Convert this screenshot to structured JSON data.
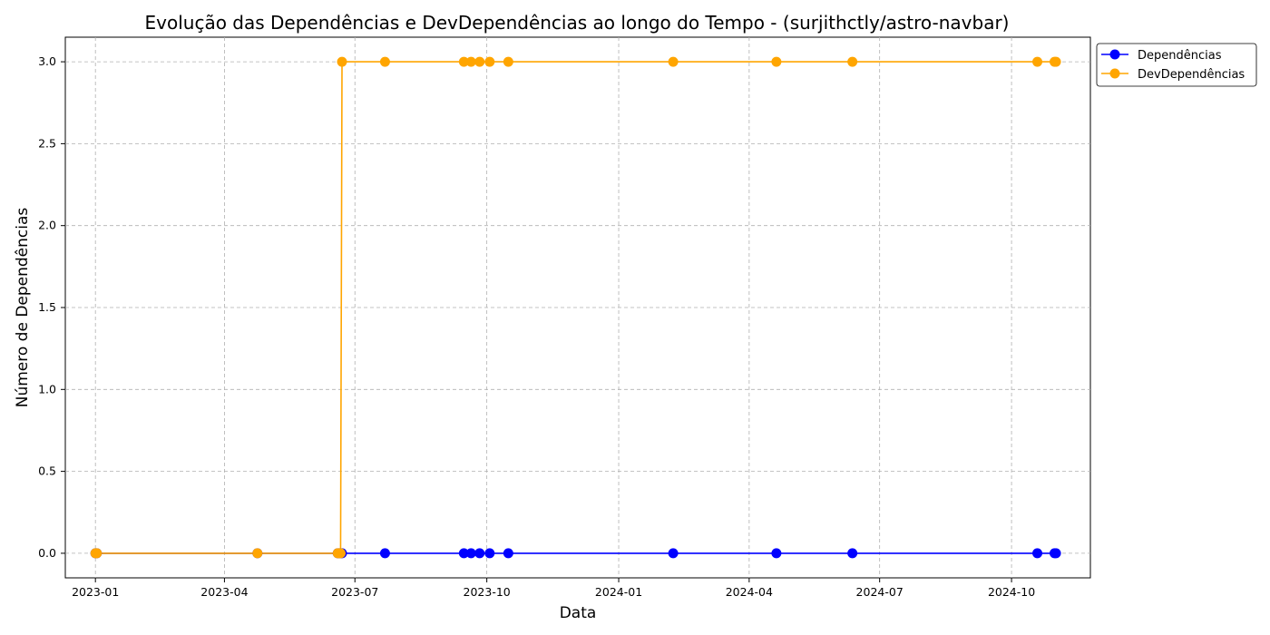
{
  "chart_data": {
    "type": "line",
    "title": "Evolução das Dependências e DevDependências ao longo do Tempo - (surjithctly/astro-navbar)",
    "xlabel": "Data",
    "ylabel": "Número de Dependências",
    "x_ticks": [
      "2023-01",
      "2023-04",
      "2023-07",
      "2023-10",
      "2024-01",
      "2024-04",
      "2024-07",
      "2024-10"
    ],
    "y_ticks": [
      "0.0",
      "0.5",
      "1.0",
      "1.5",
      "2.0",
      "2.5",
      "3.0"
    ],
    "xlim": [
      "2022-12-11",
      "2024-11-25"
    ],
    "ylim": [
      -0.15,
      3.15
    ],
    "grid": true,
    "legend_position": "upper-right-outside",
    "x": [
      "2023-01-01",
      "2023-01-02",
      "2023-04-24",
      "2023-06-19",
      "2023-06-20",
      "2023-06-21",
      "2023-06-22",
      "2023-07-22",
      "2023-09-15",
      "2023-09-20",
      "2023-09-26",
      "2023-10-03",
      "2023-10-16",
      "2024-02-08",
      "2024-04-20",
      "2024-06-12",
      "2024-10-19",
      "2024-10-31",
      "2024-11-01"
    ],
    "series": [
      {
        "name": "Dependências",
        "color": "#0000ff",
        "values": [
          0,
          0,
          0,
          0,
          0,
          0,
          0,
          0,
          0,
          0,
          0,
          0,
          0,
          0,
          0,
          0,
          0,
          0,
          0
        ]
      },
      {
        "name": "DevDependências",
        "color": "#ffa500",
        "values": [
          0,
          0,
          0,
          0,
          0,
          0,
          3,
          3,
          3,
          3,
          3,
          3,
          3,
          3,
          3,
          3,
          3,
          3,
          3
        ]
      }
    ]
  }
}
